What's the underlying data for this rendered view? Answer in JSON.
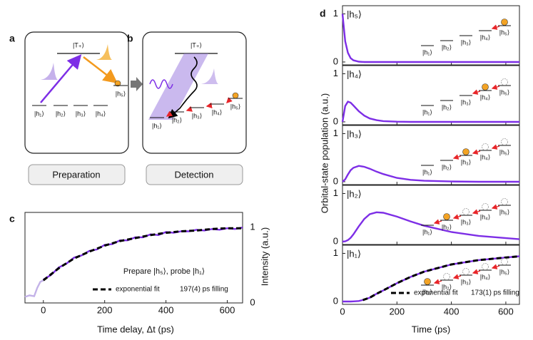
{
  "diagrams": [
    {
      "panel": "a",
      "top_level": "|T₊⟩",
      "levels": [
        "|h₁⟩",
        "|h₂⟩",
        "|h₃⟩",
        "|h₄⟩",
        "|h₅⟩"
      ],
      "button": "Preparation"
    },
    {
      "panel": "b",
      "top_level": "|T₊⟩",
      "levels": [
        "|h₁⟩",
        "|h₂⟩",
        "|h₃⟩",
        "|h₄⟩",
        "|h₅⟩"
      ],
      "button": "Detection"
    }
  ],
  "chart_data": [
    {
      "type": "line",
      "panel": "c",
      "xlabel": "Time delay, Δt (ps)",
      "ylabel": "Intensity (a.u.)",
      "xlim": [
        -60,
        650
      ],
      "xticks": [
        0,
        200,
        400,
        600
      ],
      "ylim": [
        0,
        1.2
      ],
      "yticks": [
        0,
        1
      ],
      "yaxis_side": "right",
      "annotations": [
        "Prepare |h₅⟩, probe |h₁⟩",
        "197(4) ps filling"
      ],
      "series": [
        {
          "color": "#c3b2e8",
          "x": [
            -60,
            -45,
            -30,
            -20,
            -10,
            0
          ],
          "values": [
            0.08,
            0.1,
            0.09,
            0.2,
            0.28,
            0.3
          ]
        },
        {
          "color": "#7d2ee6",
          "x": [
            0,
            25,
            50,
            75,
            100,
            125,
            150,
            175,
            200,
            225,
            250,
            275,
            300,
            325,
            350,
            375,
            400,
            425,
            450,
            475,
            500,
            525,
            550,
            575,
            600,
            625,
            650
          ],
          "values": [
            0.31,
            0.37,
            0.47,
            0.52,
            0.6,
            0.63,
            0.69,
            0.71,
            0.77,
            0.78,
            0.83,
            0.83,
            0.87,
            0.87,
            0.91,
            0.9,
            0.94,
            0.93,
            0.95,
            0.95,
            0.97,
            0.96,
            0.98,
            0.97,
            0.99,
            0.98,
            1.0
          ]
        },
        {
          "name": "exponential fit",
          "color": "#000000",
          "dashed": true,
          "x": [
            0,
            50,
            100,
            150,
            200,
            250,
            300,
            350,
            400,
            450,
            500,
            550,
            600,
            650
          ],
          "values": [
            0.3,
            0.46,
            0.59,
            0.68,
            0.76,
            0.82,
            0.86,
            0.9,
            0.93,
            0.95,
            0.96,
            0.98,
            0.99,
            0.99
          ]
        }
      ]
    },
    {
      "type": "line",
      "panel": "d",
      "label": "|h₅⟩",
      "xlim": [
        0,
        650
      ],
      "xticks": [
        0,
        200,
        400,
        600
      ],
      "ylim": [
        -0.06,
        1.17
      ],
      "yticks": [
        0,
        1
      ],
      "inset_levels": [
        "|h₁⟩",
        "|h₂⟩",
        "|h₃⟩",
        "|h₄⟩",
        "|h₅⟩"
      ],
      "series": [
        {
          "color": "#7d2ee6",
          "x": [
            0,
            10,
            20,
            30,
            40,
            60,
            80,
            100,
            150,
            650
          ],
          "values": [
            1,
            0.43,
            0.19,
            0.08,
            0.035,
            0.007,
            0,
            0,
            0,
            0
          ]
        }
      ]
    },
    {
      "type": "line",
      "label": "|h₄⟩",
      "xlim": [
        0,
        650
      ],
      "xticks": [
        0,
        200,
        400,
        600
      ],
      "ylim": [
        -0.06,
        1.17
      ],
      "yticks": [
        0,
        1
      ],
      "inset_levels": [
        "|h₁⟩",
        "|h₂⟩",
        "|h₃⟩",
        "|h₄⟩",
        "|h₅⟩"
      ],
      "series": [
        {
          "color": "#7d2ee6",
          "x": [
            0,
            10,
            20,
            30,
            40,
            60,
            80,
            100,
            125,
            150,
            200,
            250,
            650
          ],
          "values": [
            0,
            0.33,
            0.42,
            0.4,
            0.34,
            0.22,
            0.13,
            0.07,
            0.035,
            0.015,
            0.003,
            0,
            0
          ]
        }
      ]
    },
    {
      "type": "line",
      "label": "|h₃⟩",
      "xlim": [
        0,
        650
      ],
      "xticks": [
        0,
        200,
        400,
        600
      ],
      "ylim": [
        -0.06,
        1.17
      ],
      "yticks": [
        0,
        1
      ],
      "inset_levels": [
        "|h₁⟩",
        "|h₂⟩",
        "|h₃⟩",
        "|h₄⟩",
        "|h₅⟩"
      ],
      "series": [
        {
          "color": "#7d2ee6",
          "x": [
            0,
            10,
            20,
            30,
            40,
            60,
            80,
            100,
            125,
            150,
            200,
            250,
            300,
            400,
            500,
            650
          ],
          "values": [
            0,
            0.05,
            0.15,
            0.24,
            0.29,
            0.33,
            0.31,
            0.27,
            0.21,
            0.16,
            0.08,
            0.04,
            0.02,
            0.005,
            0,
            0
          ]
        }
      ]
    },
    {
      "type": "line",
      "label": "|h₂⟩",
      "xlim": [
        0,
        650
      ],
      "xticks": [
        0,
        200,
        400,
        600
      ],
      "ylim": [
        -0.06,
        1.17
      ],
      "yticks": [
        0,
        1
      ],
      "inset_levels": [
        "|h₁⟩",
        "|h₂⟩",
        "|h₃⟩",
        "|h₄⟩",
        "|h₅⟩"
      ],
      "series": [
        {
          "color": "#7d2ee6",
          "x": [
            0,
            10,
            20,
            30,
            40,
            60,
            80,
            100,
            125,
            150,
            200,
            250,
            300,
            400,
            500,
            650
          ],
          "values": [
            0,
            0.005,
            0.03,
            0.08,
            0.15,
            0.32,
            0.47,
            0.57,
            0.61,
            0.6,
            0.52,
            0.42,
            0.33,
            0.2,
            0.12,
            0.05
          ]
        }
      ]
    },
    {
      "type": "line",
      "label": "|h₁⟩",
      "xlabel": "Time (ps)",
      "ylabel": "Orbital-state population (a.u.)",
      "xlim": [
        0,
        650
      ],
      "xticks": [
        0,
        200,
        400,
        600
      ],
      "ylim": [
        -0.06,
        1.17
      ],
      "yticks": [
        0,
        1
      ],
      "inset_levels": [
        "|h₁⟩",
        "|h₂⟩",
        "|h₃⟩",
        "|h₄⟩",
        "|h₅⟩"
      ],
      "annotations": [
        "173(1) ps filling"
      ],
      "series": [
        {
          "color": "#7d2ee6",
          "x": [
            0,
            10,
            20,
            30,
            40,
            60,
            80,
            100,
            125,
            150,
            200,
            250,
            300,
            400,
            500,
            650
          ],
          "values": [
            0,
            0,
            0,
            0,
            0.002,
            0.01,
            0.04,
            0.08,
            0.16,
            0.23,
            0.38,
            0.51,
            0.62,
            0.77,
            0.86,
            0.94
          ]
        },
        {
          "name": "exponential fit",
          "color": "#000000",
          "dashed": true,
          "x": [
            75,
            100,
            125,
            150,
            200,
            250,
            300,
            400,
            500,
            650
          ],
          "values": [
            0.03,
            0.08,
            0.16,
            0.23,
            0.38,
            0.51,
            0.62,
            0.77,
            0.86,
            0.94
          ]
        }
      ]
    }
  ]
}
